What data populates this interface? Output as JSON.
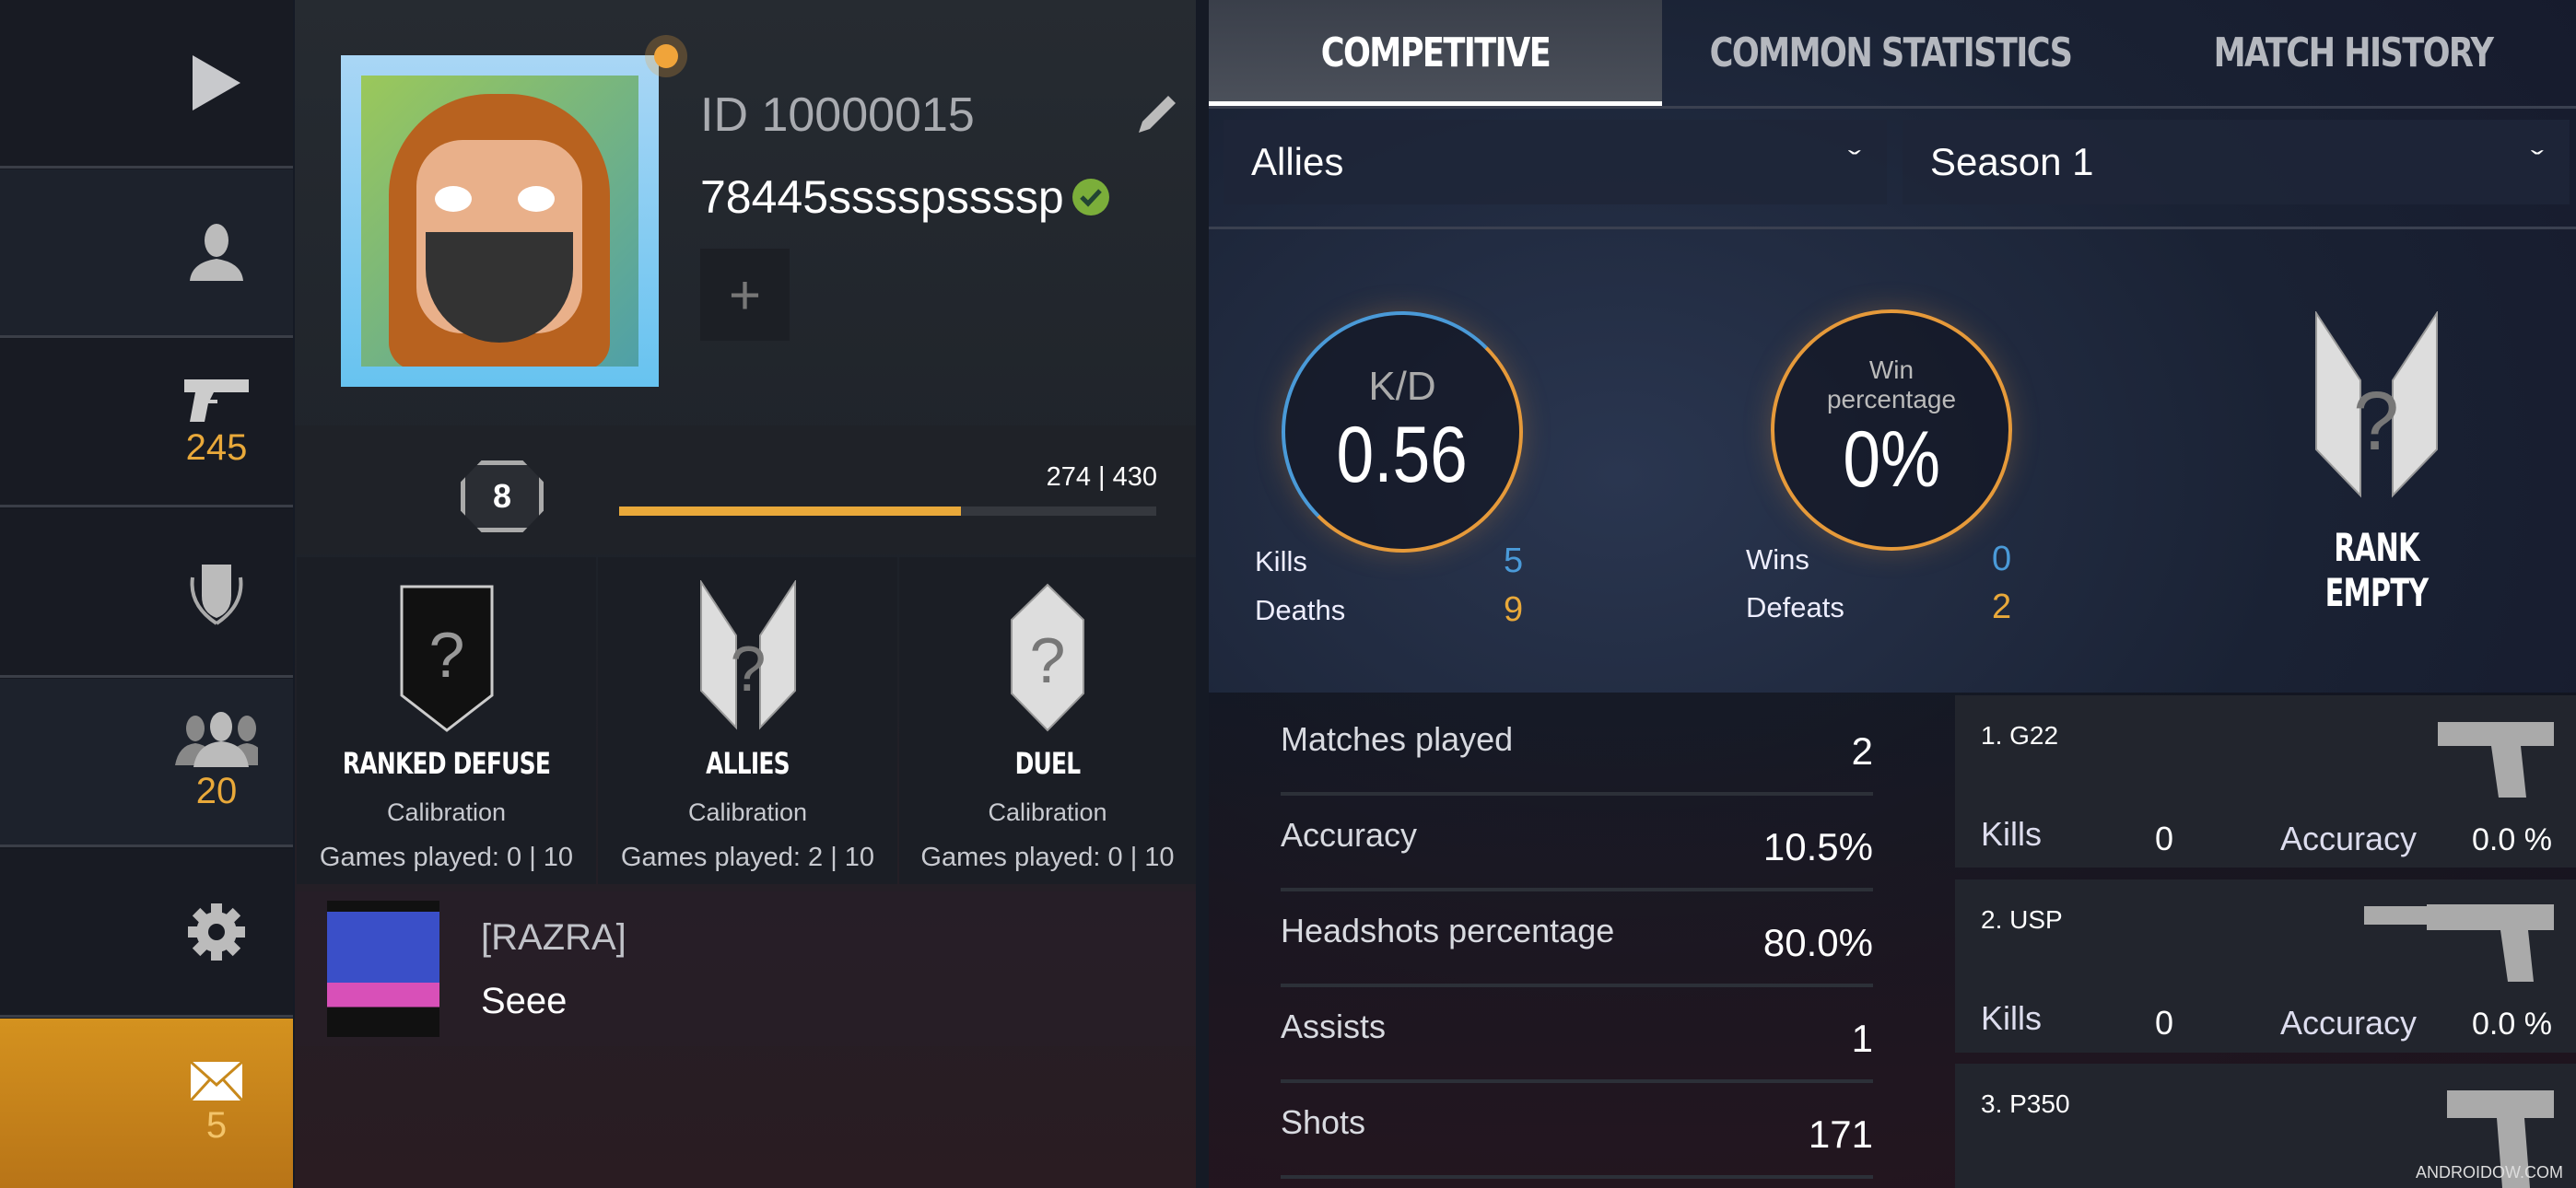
{
  "sidebar": {
    "items": [
      {
        "icon": "play-icon"
      },
      {
        "icon": "profile-icon"
      },
      {
        "icon": "pistol-icon",
        "count": "245"
      },
      {
        "icon": "shield-laurel-icon"
      },
      {
        "icon": "friends-icon",
        "count": "20"
      },
      {
        "icon": "gear-icon"
      },
      {
        "icon": "mail-icon",
        "count": "5",
        "active": true
      }
    ]
  },
  "profile": {
    "id": "ID 10000015",
    "name": "78445sssspssssp",
    "verified": true,
    "level": "8",
    "xp_text": "274 | 430",
    "xp_current": 274,
    "xp_max": 430
  },
  "ranks": [
    {
      "title": "RANKED DEFUSE",
      "status": "Calibration",
      "games": "Games played: 0 | 10"
    },
    {
      "title": "ALLIES",
      "status": "Calibration",
      "games": "Games played: 2 | 10"
    },
    {
      "title": "DUEL",
      "status": "Calibration",
      "games": "Games played: 0 | 10"
    }
  ],
  "clan": {
    "tag": "[RAZRA]",
    "message": "Seee"
  },
  "tabs": [
    {
      "label": "COMPETITIVE",
      "active": true
    },
    {
      "label": "COMMON STATISTICS"
    },
    {
      "label": "MATCH HISTORY"
    }
  ],
  "filters": {
    "mode": "Allies",
    "season": "Season 1"
  },
  "kd": {
    "label": "K/D",
    "value": "0.56",
    "kills_label": "Kills",
    "kills": "5",
    "deaths_label": "Deaths",
    "deaths": "9"
  },
  "win": {
    "label": "Win percentage",
    "value": "0%",
    "wins_label": "Wins",
    "wins": "0",
    "defeats_label": "Defeats",
    "defeats": "2"
  },
  "rank_label": "RANK EMPTY",
  "stats": [
    {
      "label": "Matches played",
      "value": "2"
    },
    {
      "label": "Accuracy",
      "value": "10.5%"
    },
    {
      "label": "Headshots percentage",
      "value": "80.0%"
    },
    {
      "label": "Assists",
      "value": "1"
    },
    {
      "label": "Shots",
      "value": "171"
    }
  ],
  "weapons": [
    {
      "name": "1. G22",
      "kills_label": "Kills",
      "kills": "0",
      "acc_label": "Accuracy",
      "accuracy": "0.0 %"
    },
    {
      "name": "2. USP",
      "kills_label": "Kills",
      "kills": "0",
      "acc_label": "Accuracy",
      "accuracy": "0.0 %"
    },
    {
      "name": "3. P350"
    }
  ],
  "watermark": "ANDROIDOW.COM",
  "colors": {
    "accent": "#e9a93a",
    "blue": "#4a9ad8",
    "active_sidebar": "#c8891c"
  }
}
